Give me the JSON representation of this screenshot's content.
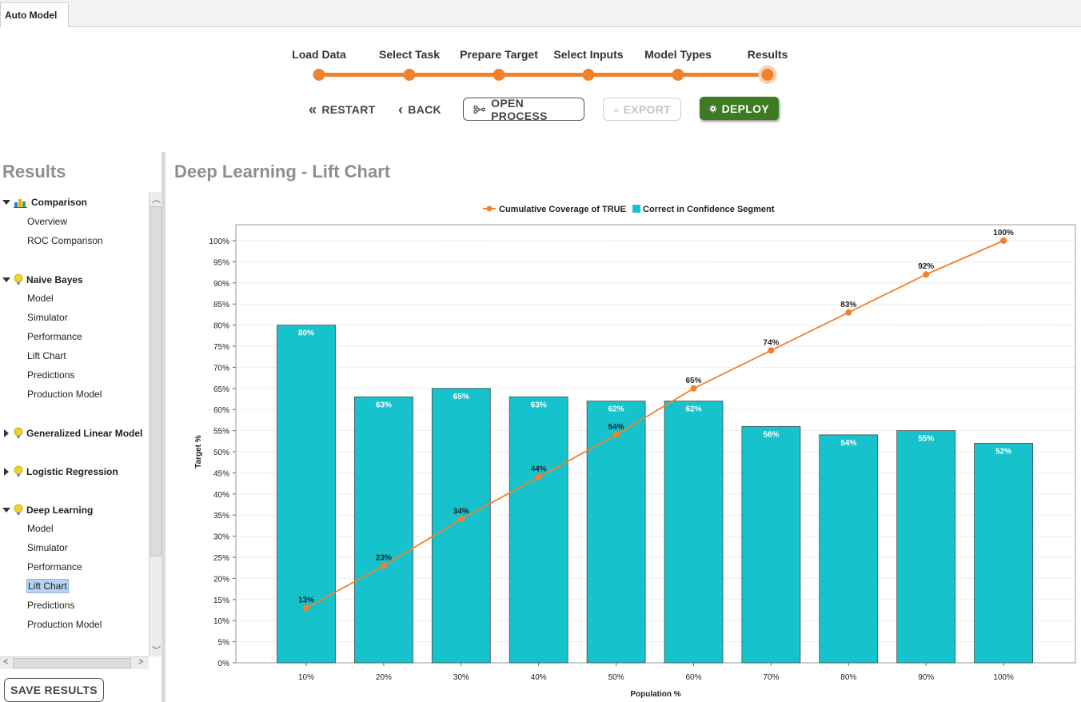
{
  "tab": {
    "label": "Auto Model"
  },
  "wizard": {
    "steps": [
      "Load Data",
      "Select Task",
      "Prepare Target",
      "Select Inputs",
      "Model Types",
      "Results"
    ],
    "active_step": "Results",
    "accent_color": "#f0822d"
  },
  "actions": {
    "restart": "RESTART",
    "back": "BACK",
    "open_process": "OPEN PROCESS",
    "export": "EXPORT",
    "deploy": "DEPLOY"
  },
  "sidebar": {
    "title": "Results",
    "groups": [
      {
        "label": "Comparison",
        "icon": "comparison-chart-icon",
        "expanded": true,
        "items": [
          "Overview",
          "ROC Comparison"
        ]
      },
      {
        "label": "Naive Bayes",
        "icon": "lightbulb-icon",
        "expanded": true,
        "items": [
          "Model",
          "Simulator",
          "Performance",
          "Lift Chart",
          "Predictions",
          "Production Model"
        ]
      },
      {
        "label": "Generalized Linear Model",
        "icon": "lightbulb-icon",
        "expanded": false,
        "items": []
      },
      {
        "label": "Logistic Regression",
        "icon": "lightbulb-icon",
        "expanded": false,
        "items": []
      },
      {
        "label": "Deep Learning",
        "icon": "lightbulb-icon",
        "expanded": true,
        "items": [
          "Model",
          "Simulator",
          "Performance",
          "Lift Chart",
          "Predictions",
          "Production Model"
        ]
      }
    ],
    "selected": "Deep Learning / Lift Chart",
    "save_label": "SAVE RESULTS"
  },
  "content": {
    "title": "Deep Learning - Lift Chart"
  },
  "chart_data": {
    "type": "bar",
    "categories": [
      "10%",
      "20%",
      "30%",
      "40%",
      "50%",
      "60%",
      "70%",
      "80%",
      "90%",
      "100%"
    ],
    "series": [
      {
        "name": "Correct in Confidence Segment",
        "kind": "bar",
        "color": "#16c2cc",
        "values": [
          80,
          63,
          65,
          63,
          62,
          62,
          56,
          54,
          55,
          52
        ],
        "labels": [
          "80%",
          "63%",
          "65%",
          "63%",
          "62%",
          "62%",
          "56%",
          "54%",
          "55%",
          "52%"
        ]
      },
      {
        "name": "Cumulative Coverage of TRUE",
        "kind": "line",
        "color": "#f0822d",
        "values": [
          13,
          23,
          34,
          44,
          54,
          65,
          74,
          83,
          92,
          100
        ],
        "labels": [
          "13%",
          "23%",
          "34%",
          "44%",
          "54%",
          "65%",
          "74%",
          "83%",
          "92%",
          "100%"
        ]
      }
    ],
    "xlabel": "Population %",
    "ylabel": "Target %",
    "ylim": [
      0,
      100
    ],
    "yticks": [
      "0%",
      "5%",
      "10%",
      "15%",
      "20%",
      "25%",
      "30%",
      "35%",
      "40%",
      "45%",
      "50%",
      "55%",
      "60%",
      "65%",
      "70%",
      "75%",
      "80%",
      "85%",
      "90%",
      "95%",
      "100%"
    ],
    "legend_position": "top-center",
    "grid": true
  }
}
